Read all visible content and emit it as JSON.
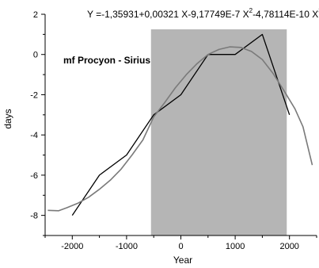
{
  "chart_data": {
    "type": "line",
    "title": "",
    "formula_text": {
      "part1": "Y =-1,35931+0,00321 X-9,17749E-7 X",
      "sup1": "2",
      "part2": "-4,78114E-10 X",
      "sup2": "3"
    },
    "annotation": "mf Procyon - Sirius",
    "xlabel": "Year",
    "ylabel": "days",
    "xlim": [
      -2500,
      2500
    ],
    "ylim": [
      -9,
      2
    ],
    "x_ticks": [
      -2000,
      -1000,
      0,
      1000,
      2000
    ],
    "y_ticks": [
      -8,
      -6,
      -4,
      -2,
      0,
      2
    ],
    "shaded_region": {
      "x_from": -550,
      "x_to": 1950,
      "color": "#b5b5b5"
    },
    "series": [
      {
        "color": "#000000",
        "x": [
          -2000,
          -1500,
          -1000,
          -500,
          0,
          500,
          1000,
          1500,
          2000
        ],
        "y": [
          -8.0,
          -6.0,
          -5.0,
          -3.0,
          -2.0,
          0.0,
          0.0,
          1.0,
          -3.0
        ]
      },
      {
        "color": "#7a7a7a",
        "x": [
          -2450,
          -2250,
          -2100,
          -1900,
          -1700,
          -1500,
          -1300,
          -1100,
          -900,
          -700,
          -500,
          -300,
          -100,
          100,
          300,
          500,
          700,
          900,
          1100,
          1300,
          1500,
          1700,
          1900,
          2100,
          2250,
          2420
        ],
        "y": [
          -7.75,
          -7.77,
          -7.62,
          -7.4,
          -7.1,
          -6.7,
          -6.25,
          -5.7,
          -5.0,
          -4.25,
          -3.1,
          -2.4,
          -1.65,
          -1.0,
          -0.45,
          0.0,
          0.25,
          0.38,
          0.35,
          0.15,
          -0.25,
          -0.95,
          -1.8,
          -2.7,
          -3.6,
          -5.5
        ]
      }
    ],
    "grid": false
  }
}
